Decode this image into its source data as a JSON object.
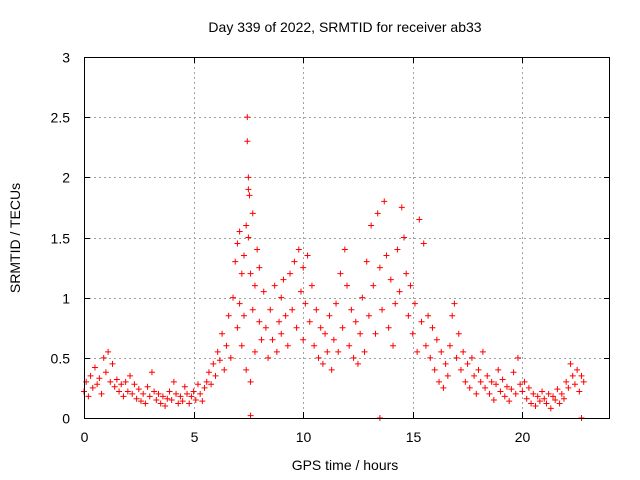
{
  "chart_data": {
    "type": "scatter",
    "title": "Day 339 of 2022, SRMTID for receiver ab33",
    "xlabel": "GPS time / hours",
    "ylabel": "SRMTID / TECUs",
    "xlim": [
      0,
      24
    ],
    "ylim": [
      0,
      3
    ],
    "xticks": [
      0,
      5,
      10,
      15,
      20
    ],
    "yticks": [
      0,
      0.5,
      1,
      1.5,
      2,
      2.5,
      3
    ],
    "xtick_labels": [
      "0",
      "5",
      "10",
      "15",
      "20"
    ],
    "ytick_labels": [
      "0",
      "0.5",
      "1",
      "1.5",
      "2",
      "2.5",
      "3"
    ],
    "grid": true,
    "marker": "+",
    "series": [
      {
        "name": "SRMTID",
        "color": "#ff0000",
        "points": [
          [
            0.0,
            0.22
          ],
          [
            0.1,
            0.3
          ],
          [
            0.2,
            0.18
          ],
          [
            0.3,
            0.35
          ],
          [
            0.4,
            0.25
          ],
          [
            0.5,
            0.42
          ],
          [
            0.6,
            0.28
          ],
          [
            0.7,
            0.33
          ],
          [
            0.8,
            0.2
          ],
          [
            0.9,
            0.5
          ],
          [
            1.0,
            0.38
          ],
          [
            1.1,
            0.55
          ],
          [
            1.2,
            0.3
          ],
          [
            1.3,
            0.45
          ],
          [
            1.4,
            0.26
          ],
          [
            1.5,
            0.32
          ],
          [
            1.6,
            0.22
          ],
          [
            1.7,
            0.28
          ],
          [
            1.8,
            0.18
          ],
          [
            1.9,
            0.3
          ],
          [
            2.0,
            0.22
          ],
          [
            2.1,
            0.35
          ],
          [
            2.2,
            0.2
          ],
          [
            2.3,
            0.28
          ],
          [
            2.4,
            0.16
          ],
          [
            2.5,
            0.24
          ],
          [
            2.6,
            0.14
          ],
          [
            2.7,
            0.2
          ],
          [
            2.8,
            0.12
          ],
          [
            2.9,
            0.26
          ],
          [
            3.0,
            0.18
          ],
          [
            3.1,
            0.38
          ],
          [
            3.2,
            0.22
          ],
          [
            3.3,
            0.15
          ],
          [
            3.4,
            0.2
          ],
          [
            3.5,
            0.12
          ],
          [
            3.6,
            0.18
          ],
          [
            3.7,
            0.1
          ],
          [
            3.8,
            0.16
          ],
          [
            3.9,
            0.22
          ],
          [
            4.0,
            0.15
          ],
          [
            4.1,
            0.3
          ],
          [
            4.2,
            0.2
          ],
          [
            4.3,
            0.12
          ],
          [
            4.4,
            0.18
          ],
          [
            4.5,
            0.14
          ],
          [
            4.6,
            0.26
          ],
          [
            4.7,
            0.2
          ],
          [
            4.8,
            0.12
          ],
          [
            4.9,
            0.18
          ],
          [
            5.0,
            0.22
          ],
          [
            5.1,
            0.15
          ],
          [
            5.2,
            0.28
          ],
          [
            5.3,
            0.2
          ],
          [
            5.4,
            0.14
          ],
          [
            5.5,
            0.25
          ],
          [
            5.6,
            0.3
          ],
          [
            5.7,
            0.38
          ],
          [
            5.8,
            0.28
          ],
          [
            5.9,
            0.45
          ],
          [
            6.0,
            0.35
          ],
          [
            6.1,
            0.55
          ],
          [
            6.2,
            0.48
          ],
          [
            6.3,
            0.7
          ],
          [
            6.4,
            0.4
          ],
          [
            6.5,
            0.6
          ],
          [
            6.6,
            0.85
          ],
          [
            6.7,
            0.5
          ],
          [
            6.8,
            1.0
          ],
          [
            6.9,
            1.3
          ],
          [
            7.0,
            0.75
          ],
          [
            7.0,
            1.45
          ],
          [
            7.1,
            0.95
          ],
          [
            7.1,
            1.55
          ],
          [
            7.2,
            0.6
          ],
          [
            7.2,
            1.2
          ],
          [
            7.3,
            1.35
          ],
          [
            7.3,
            0.85
          ],
          [
            7.4,
            1.6
          ],
          [
            7.4,
            0.4
          ],
          [
            7.45,
            2.5
          ],
          [
            7.45,
            2.3
          ],
          [
            7.5,
            2.0
          ],
          [
            7.5,
            1.9
          ],
          [
            7.55,
            1.85
          ],
          [
            7.5,
            1.5
          ],
          [
            7.6,
            1.2
          ],
          [
            7.6,
            0.3
          ],
          [
            7.7,
            0.9
          ],
          [
            7.7,
            1.7
          ],
          [
            7.8,
            1.1
          ],
          [
            7.8,
            0.55
          ],
          [
            7.9,
            1.4
          ],
          [
            8.0,
            0.8
          ],
          [
            8.0,
            1.25
          ],
          [
            8.1,
            0.65
          ],
          [
            8.2,
            1.05
          ],
          [
            8.3,
            0.75
          ],
          [
            8.4,
            0.5
          ],
          [
            8.5,
            0.9
          ],
          [
            8.6,
            0.65
          ],
          [
            8.7,
            1.1
          ],
          [
            8.8,
            0.55
          ],
          [
            8.9,
            0.8
          ],
          [
            9.0,
            1.0
          ],
          [
            9.0,
            0.7
          ],
          [
            9.1,
            1.15
          ],
          [
            9.2,
            0.85
          ],
          [
            9.3,
            0.6
          ],
          [
            9.4,
            1.2
          ],
          [
            9.5,
            0.9
          ],
          [
            9.6,
            1.3
          ],
          [
            9.7,
            0.75
          ],
          [
            9.8,
            1.4
          ],
          [
            9.9,
            1.05
          ],
          [
            10.0,
            0.65
          ],
          [
            10.0,
            1.25
          ],
          [
            10.1,
            0.95
          ],
          [
            10.2,
            1.35
          ],
          [
            10.3,
            0.8
          ],
          [
            10.4,
            1.1
          ],
          [
            10.5,
            0.6
          ],
          [
            10.6,
            0.9
          ],
          [
            10.7,
            0.5
          ],
          [
            10.8,
            0.75
          ],
          [
            10.9,
            0.45
          ],
          [
            11.0,
            0.7
          ],
          [
            11.1,
            0.55
          ],
          [
            11.2,
            0.85
          ],
          [
            11.3,
            0.4
          ],
          [
            11.4,
            0.65
          ],
          [
            11.5,
            0.95
          ],
          [
            11.6,
            0.55
          ],
          [
            11.7,
            1.2
          ],
          [
            11.8,
            0.75
          ],
          [
            11.9,
            1.4
          ],
          [
            12.0,
            1.1
          ],
          [
            12.1,
            0.6
          ],
          [
            12.2,
            0.9
          ],
          [
            12.3,
            0.5
          ],
          [
            12.4,
            0.8
          ],
          [
            12.5,
            0.45
          ],
          [
            12.6,
            0.7
          ],
          [
            12.7,
            1.0
          ],
          [
            12.8,
            0.55
          ],
          [
            12.9,
            1.3
          ],
          [
            13.0,
            0.85
          ],
          [
            13.1,
            1.6
          ],
          [
            13.2,
            1.1
          ],
          [
            13.3,
            0.7
          ],
          [
            13.4,
            1.7
          ],
          [
            13.5,
            1.25
          ],
          [
            13.6,
            0.9
          ],
          [
            13.7,
            1.8
          ],
          [
            13.8,
            1.35
          ],
          [
            13.9,
            0.75
          ],
          [
            14.0,
            1.15
          ],
          [
            14.1,
            0.6
          ],
          [
            14.2,
            0.95
          ],
          [
            14.3,
            1.4
          ],
          [
            14.4,
            1.05
          ],
          [
            14.5,
            1.75
          ],
          [
            14.6,
            1.5
          ],
          [
            14.7,
            1.2
          ],
          [
            14.8,
            0.85
          ],
          [
            14.9,
            1.1
          ],
          [
            15.0,
            0.7
          ],
          [
            15.1,
            0.95
          ],
          [
            15.2,
            0.55
          ],
          [
            15.3,
            1.65
          ],
          [
            15.4,
            0.8
          ],
          [
            15.5,
            1.45
          ],
          [
            15.6,
            0.6
          ],
          [
            15.7,
            0.85
          ],
          [
            15.8,
            0.5
          ],
          [
            15.9,
            0.75
          ],
          [
            16.0,
            0.4
          ],
          [
            16.1,
            0.65
          ],
          [
            16.2,
            0.3
          ],
          [
            16.3,
            0.55
          ],
          [
            16.4,
            0.25
          ],
          [
            16.5,
            0.45
          ],
          [
            16.6,
            0.35
          ],
          [
            16.7,
            0.6
          ],
          [
            16.8,
            0.85
          ],
          [
            16.9,
            0.95
          ],
          [
            17.0,
            0.5
          ],
          [
            17.1,
            0.7
          ],
          [
            17.2,
            0.4
          ],
          [
            17.3,
            0.55
          ],
          [
            17.4,
            0.3
          ],
          [
            17.5,
            0.45
          ],
          [
            17.6,
            0.25
          ],
          [
            17.7,
            0.5
          ],
          [
            17.8,
            0.35
          ],
          [
            17.9,
            0.2
          ],
          [
            18.0,
            0.4
          ],
          [
            18.1,
            0.3
          ],
          [
            18.2,
            0.55
          ],
          [
            18.3,
            0.25
          ],
          [
            18.4,
            0.35
          ],
          [
            18.5,
            0.2
          ],
          [
            18.6,
            0.3
          ],
          [
            18.7,
            0.15
          ],
          [
            18.8,
            0.28
          ],
          [
            18.9,
            0.4
          ],
          [
            19.0,
            0.22
          ],
          [
            19.1,
            0.32
          ],
          [
            19.2,
            0.18
          ],
          [
            19.3,
            0.26
          ],
          [
            19.4,
            0.14
          ],
          [
            19.5,
            0.24
          ],
          [
            19.6,
            0.38
          ],
          [
            19.7,
            0.2
          ],
          [
            19.8,
            0.5
          ],
          [
            19.9,
            0.28
          ],
          [
            20.0,
            0.22
          ],
          [
            20.1,
            0.3
          ],
          [
            20.2,
            0.16
          ],
          [
            20.3,
            0.25
          ],
          [
            20.4,
            0.12
          ],
          [
            20.5,
            0.2
          ],
          [
            20.6,
            0.1
          ],
          [
            20.7,
            0.18
          ],
          [
            20.8,
            0.14
          ],
          [
            20.9,
            0.22
          ],
          [
            21.0,
            0.16
          ],
          [
            21.1,
            0.12
          ],
          [
            21.2,
            0.2
          ],
          [
            21.3,
            0.08
          ],
          [
            21.4,
            0.18
          ],
          [
            21.5,
            0.15
          ],
          [
            21.6,
            0.24
          ],
          [
            21.7,
            0.12
          ],
          [
            21.8,
            0.2
          ],
          [
            21.9,
            0.16
          ],
          [
            22.0,
            0.3
          ],
          [
            22.1,
            0.25
          ],
          [
            22.2,
            0.45
          ],
          [
            22.3,
            0.35
          ],
          [
            22.4,
            0.28
          ],
          [
            22.5,
            0.4
          ],
          [
            22.6,
            0.22
          ],
          [
            22.7,
            0.35
          ],
          [
            22.8,
            0.3
          ],
          [
            13.5,
            0.0
          ],
          [
            7.6,
            0.02
          ],
          [
            22.7,
            0.0
          ]
        ]
      }
    ]
  }
}
